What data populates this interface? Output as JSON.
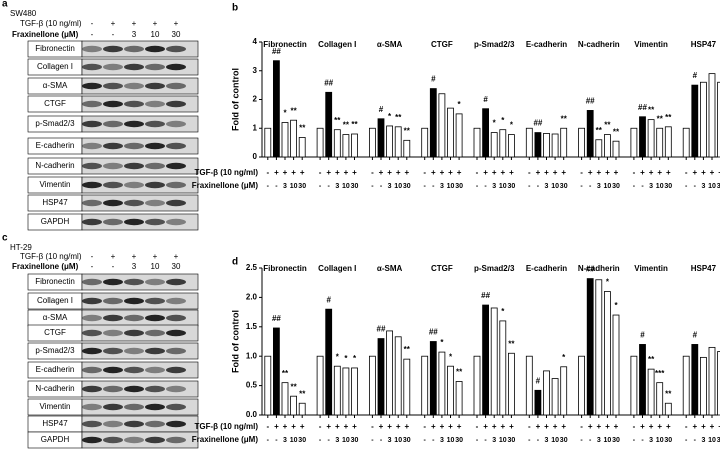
{
  "blots": [
    {
      "panel": "a",
      "cell_line": "SW480",
      "tgf": {
        "label": "TGF-β (10 ng/ml)",
        "signs": [
          "-",
          "+",
          "+",
          "+",
          "+"
        ]
      },
      "frax": {
        "label": "Fraxinellone (μM)",
        "signs": [
          "-",
          "-",
          "3",
          "10",
          "30"
        ]
      },
      "proteins": [
        "Fibronectin",
        "Collagen I",
        "α-SMA",
        "CTGF",
        "p-Smad2/3",
        "E-cadherin",
        "N-cadherin",
        "Vimentin",
        "HSP47",
        "GAPDH"
      ]
    },
    {
      "panel": "c",
      "cell_line": "HT-29",
      "tgf": {
        "label": "TGF-β (10 ng/ml)",
        "signs": [
          "-",
          "+",
          "+",
          "+",
          "+"
        ]
      },
      "frax": {
        "label": "Fraxinellone (μM)",
        "signs": [
          "-",
          "-",
          "3",
          "10",
          "30"
        ]
      },
      "proteins": [
        "Fibronectin",
        "Collagen I",
        "α-SMA",
        "CTGF",
        "p-Smad2/3",
        "E-cadherin",
        "N-cadherin",
        "Vimentin",
        "HSP47",
        "GAPDH"
      ]
    }
  ],
  "chart_data": [
    {
      "type": "bar",
      "panel": "b",
      "ylabel": "Fold of control",
      "ylim": [
        0,
        4
      ],
      "yticks": [
        0,
        1,
        2,
        3,
        4
      ],
      "colors": [
        "#ffffff",
        "#000000",
        "#ffffff",
        "#ffffff",
        "#ffffff"
      ],
      "tgf": {
        "label": "TGF-β (10 ng/ml)",
        "signs": [
          "-",
          "+",
          "+",
          "+",
          "+"
        ]
      },
      "frax": {
        "label": "Fraxinellone (μM)",
        "signs": [
          "-",
          "-",
          "3",
          "10",
          "30"
        ]
      },
      "groups": [
        {
          "name": "Fibronectin",
          "values": [
            1,
            3.35,
            1.2,
            1.28,
            0.68
          ],
          "marks": [
            null,
            "##",
            "*",
            "**",
            "**"
          ]
        },
        {
          "name": "Collagen I",
          "values": [
            1,
            2.25,
            0.95,
            0.78,
            0.8
          ],
          "marks": [
            null,
            "##",
            "**",
            "**",
            "**"
          ]
        },
        {
          "name": "α-SMA",
          "values": [
            1,
            1.33,
            1.08,
            1.05,
            0.58
          ],
          "marks": [
            null,
            "#",
            "*",
            "**",
            "**"
          ]
        },
        {
          "name": "CTGF",
          "values": [
            1,
            2.38,
            2.2,
            1.7,
            1.5
          ],
          "marks": [
            null,
            "#",
            null,
            null,
            "*"
          ]
        },
        {
          "name": "p-Smad2/3",
          "values": [
            1,
            1.68,
            0.85,
            0.95,
            0.78
          ],
          "marks": [
            null,
            "#",
            "*",
            "*",
            "*"
          ]
        },
        {
          "name": "E-cadherin",
          "values": [
            1,
            0.85,
            0.82,
            0.8,
            1.0
          ],
          "marks": [
            null,
            "##",
            null,
            null,
            "**"
          ]
        },
        {
          "name": "N-cadherin",
          "values": [
            1,
            1.62,
            0.6,
            0.78,
            0.55
          ],
          "marks": [
            null,
            "##",
            "**",
            "**",
            "**"
          ]
        },
        {
          "name": "Vimentin",
          "values": [
            1,
            1.4,
            1.3,
            1.0,
            1.05
          ],
          "marks": [
            null,
            "##",
            "**",
            "**",
            "**"
          ]
        },
        {
          "name": "HSP47",
          "values": [
            1,
            2.5,
            2.6,
            2.9,
            2.6
          ],
          "marks": [
            null,
            "#",
            null,
            null,
            null
          ]
        }
      ]
    },
    {
      "type": "bar",
      "panel": "d",
      "ylabel": "Fold of control",
      "ylim": [
        0,
        2.5
      ],
      "yticks": [
        {
          "value": 0,
          "label": "0.0"
        },
        0.5,
        {
          "value": 1,
          "label": "1.0"
        },
        1.5,
        {
          "value": 2,
          "label": "2.0"
        },
        2.5
      ],
      "colors": [
        "#ffffff",
        "#000000",
        "#ffffff",
        "#ffffff",
        "#ffffff"
      ],
      "tgf": {
        "label": "TGF-β (10 ng/ml)",
        "signs": [
          "-",
          "+",
          "+",
          "+",
          "+"
        ]
      },
      "frax": {
        "label": "Fraxinellone (μM)",
        "signs": [
          "-",
          "-",
          "3",
          "10",
          "30"
        ]
      },
      "groups": [
        {
          "name": "Fibronectin",
          "values": [
            1,
            1.48,
            0.55,
            0.32,
            0.2
          ],
          "marks": [
            null,
            "##",
            "**",
            "**",
            "**"
          ]
        },
        {
          "name": "Collagen I",
          "values": [
            1,
            1.8,
            0.83,
            0.8,
            0.8
          ],
          "marks": [
            null,
            "#",
            "*",
            "*",
            "*"
          ]
        },
        {
          "name": "α-SMA",
          "values": [
            1,
            1.3,
            1.43,
            1.33,
            0.95
          ],
          "marks": [
            null,
            "##",
            null,
            null,
            "**"
          ]
        },
        {
          "name": "CTGF",
          "values": [
            1,
            1.25,
            1.07,
            0.83,
            0.57
          ],
          "marks": [
            null,
            "##",
            "*",
            "*",
            "**"
          ]
        },
        {
          "name": "p-Smad2/3",
          "values": [
            1,
            1.87,
            1.82,
            1.6,
            1.05
          ],
          "marks": [
            null,
            "##",
            null,
            "*",
            "**"
          ]
        },
        {
          "name": "E-cadherin",
          "values": [
            1,
            0.42,
            0.75,
            0.62,
            0.82
          ],
          "marks": [
            null,
            "#",
            null,
            null,
            "*"
          ]
        },
        {
          "name": "N-cadherin",
          "values": [
            1,
            2.32,
            2.3,
            2.1,
            1.7
          ],
          "marks": [
            null,
            "##",
            null,
            "*",
            "*"
          ]
        },
        {
          "name": "Vimentin",
          "values": [
            1,
            1.2,
            0.78,
            0.55,
            0.2
          ],
          "marks": [
            null,
            "#",
            "**",
            "***",
            "**"
          ]
        },
        {
          "name": "HSP47",
          "values": [
            1,
            1.2,
            0.98,
            1.15,
            1.08
          ],
          "marks": [
            null,
            "#",
            null,
            null,
            null
          ]
        }
      ]
    }
  ]
}
